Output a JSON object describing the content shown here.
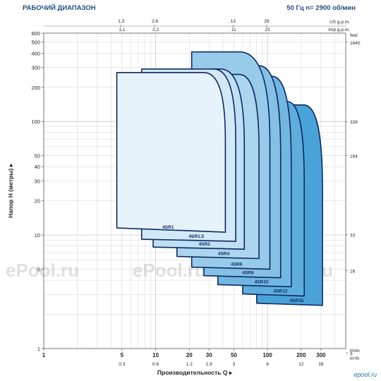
{
  "header": {
    "title": "РАБОЧИЙ ДИАПАЗОН",
    "subtitle": "50 Гц    n= 2900 об/мин"
  },
  "colors": {
    "title": "#1f4f86",
    "curve_outline": "#0d2a63",
    "fill_light": "#e6f3fb",
    "fill_dark": "#4aa3d8",
    "grid": "#c8c8c8"
  },
  "logo_text": "epool.ru",
  "watermark": [
    "ePool.ru",
    "ePool.ru",
    "ePool.ru"
  ],
  "chart_data": {
    "type": "area",
    "title": "РАБОЧИЙ ДИАПАЗОН",
    "xlabel": "Производительность Q",
    "ylabel": "Напор H (метры)",
    "x_scale": "log",
    "y_scale": "log",
    "xlim": [
      1,
      500
    ],
    "ylim": [
      1,
      600
    ],
    "x_unit_bottom": "l/min",
    "x_unit_bottom2": "m³/h",
    "x_unit_top": "US g.p.m.",
    "x_unit_top2": "Imp g.p.m.",
    "y_unit_right": "feet",
    "x_ticks": [
      1,
      5,
      10,
      20,
      30,
      50,
      100,
      200,
      300
    ],
    "x_tick_labels": [
      "1",
      "5",
      "10",
      "20",
      "30",
      "50",
      "100",
      "200",
      "300"
    ],
    "x_ticks_m3h": [
      0.3,
      0.6,
      1.2,
      1.8,
      3,
      6,
      12,
      18
    ],
    "x_ticks_m3h_labels": [
      "0.3",
      "0.6",
      "1.2",
      "1.8",
      "3",
      "6",
      "12",
      "18"
    ],
    "x_ticks_us": [
      1.3,
      2.6,
      13,
      26
    ],
    "x_ticks_us_labels": [
      "1,3",
      "2,6",
      "13",
      "26"
    ],
    "x_ticks_imp": [
      1.1,
      2.2,
      11,
      22
    ],
    "x_ticks_imp_labels": [
      "1,1",
      "2,2",
      "11",
      "22"
    ],
    "y_ticks": [
      1,
      5,
      10,
      20,
      30,
      40,
      50,
      100,
      200,
      300,
      400,
      500,
      600
    ],
    "y_tick_labels": [
      "1",
      "5",
      "10",
      "20",
      "30",
      "40",
      "50",
      "100",
      "200",
      "300",
      "400",
      "500",
      "600"
    ],
    "y_ticks_feet": [
      3,
      16,
      33,
      164,
      328,
      1640
    ],
    "y_ticks_feet_labels": [
      "3",
      "16",
      "33",
      "164",
      "328",
      "1640"
    ],
    "series": [
      {
        "name": "4SR1",
        "q_min": 4.5,
        "q_max": 42,
        "h_min": 10.6,
        "h_max": 270,
        "q_round": 27
      },
      {
        "name": "4SR1.5",
        "q_min": 7.5,
        "q_max": 52,
        "h_min": 8.8,
        "h_max": 290,
        "q_round": 33
      },
      {
        "name": "4SR2",
        "q_min": 9.5,
        "q_max": 62,
        "h_min": 7.5,
        "h_max": 290,
        "q_round": 38
      },
      {
        "name": "4SR4",
        "q_min": 15.5,
        "q_max": 84,
        "h_min": 6.2,
        "h_max": 260,
        "q_round": 56
      },
      {
        "name": "4SR6",
        "q_min": 21,
        "q_max": 105,
        "h_min": 5.0,
        "h_max": 410,
        "q_round": 56
      },
      {
        "name": "4SR8",
        "q_min": 27,
        "q_max": 131,
        "h_min": 4.2,
        "h_max": 310,
        "q_round": 84
      },
      {
        "name": "4SR10",
        "q_min": 36,
        "q_max": 163,
        "h_min": 3.5,
        "h_max": 250,
        "q_round": 110
      },
      {
        "name": "4SR12",
        "q_min": 60,
        "q_max": 213,
        "h_min": 2.9,
        "h_max": 150,
        "q_round": 150
      },
      {
        "name": "4SR15",
        "q_min": 80,
        "q_max": 310,
        "h_min": 2.4,
        "h_max": 140,
        "q_round": 210
      }
    ]
  }
}
